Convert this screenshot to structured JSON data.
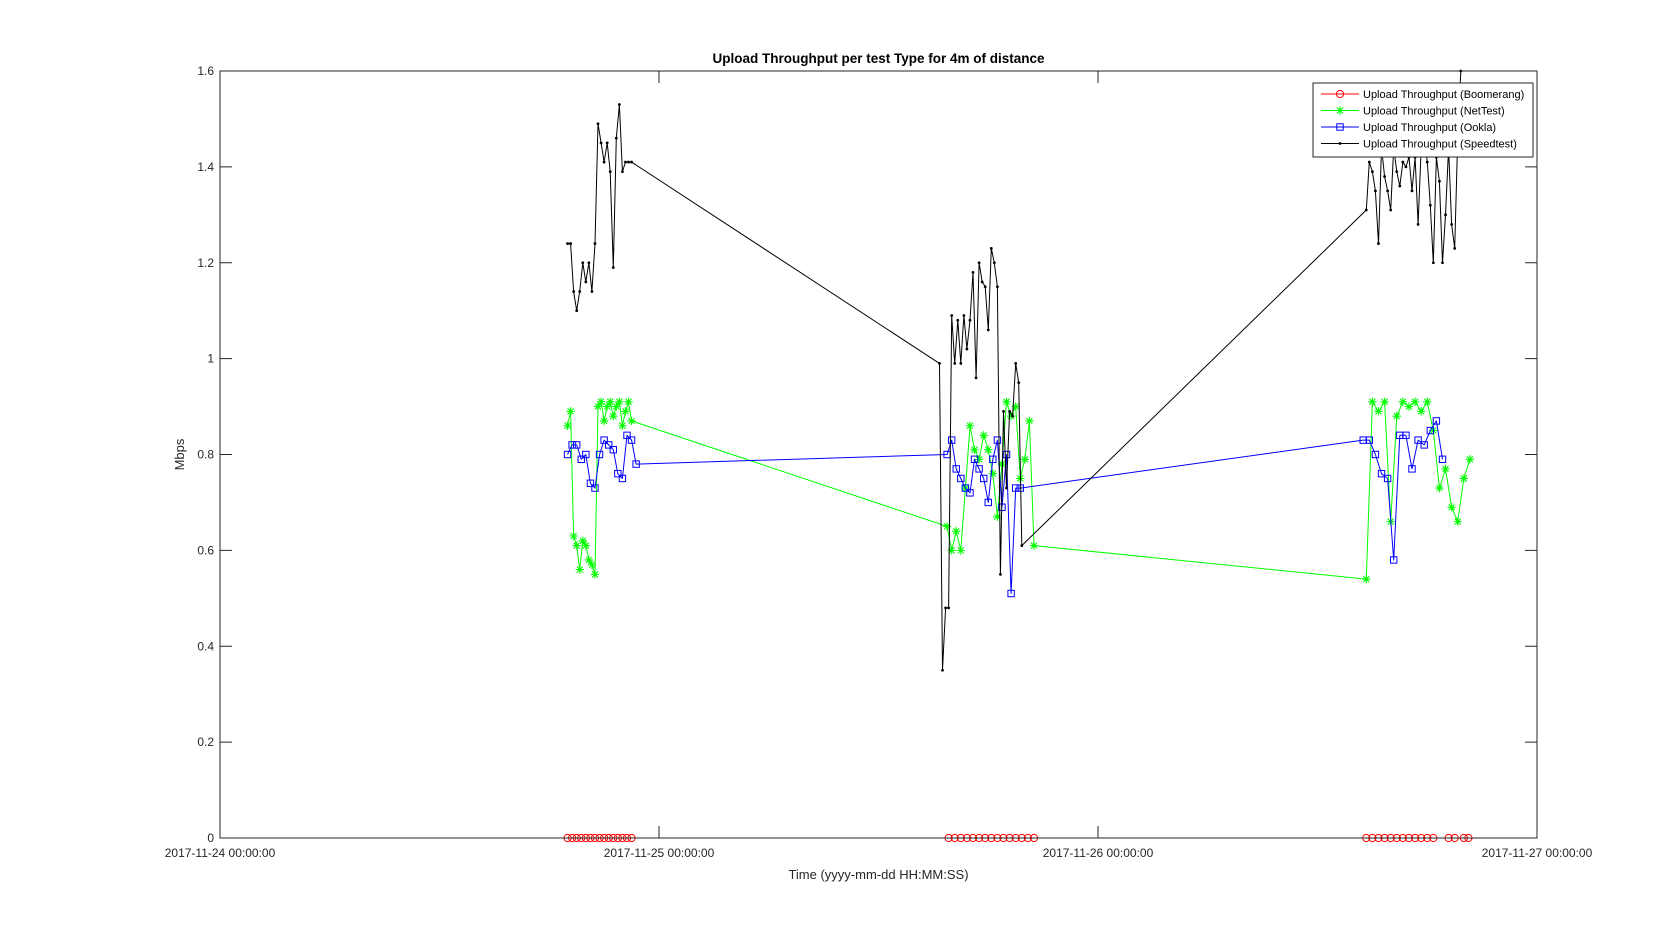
{
  "chart_data": {
    "type": "line",
    "title": "Upload Throughput per test Type for 4m of distance",
    "xlabel": "Time (yyyy-mm-dd HH:MM:SS)",
    "ylabel": "Mbps",
    "xlim": [
      "2017-11-24 00:00:00",
      "2017-11-27 00:00:00"
    ],
    "ylim": [
      0,
      1.6
    ],
    "x_ticks": [
      "2017-11-24 00:00:00",
      "2017-11-25 00:00:00",
      "2017-11-26 00:00:00",
      "2017-11-27 00:00:00"
    ],
    "y_ticks": [
      "0",
      "0.2",
      "0.4",
      "0.6",
      "0.8",
      "1",
      "1.2",
      "1.4",
      "1.6"
    ],
    "grid": false,
    "legend_position": "top-right",
    "series": [
      {
        "name": "Upload Throughput (Boomerang)",
        "color": "#ff0000",
        "marker": "circle",
        "x": [
          "2017-11-24 19:00:00",
          "2017-11-24 19:15:00",
          "2017-11-24 19:30:00",
          "2017-11-24 19:45:00",
          "2017-11-24 20:00:00",
          "2017-11-24 20:15:00",
          "2017-11-24 20:30:00",
          "2017-11-24 20:45:00",
          "2017-11-24 21:00:00",
          "2017-11-24 21:15:00",
          "2017-11-24 21:30:00",
          "2017-11-24 21:45:00",
          "2017-11-24 22:00:00",
          "2017-11-24 22:15:00",
          "2017-11-24 22:30:00",
          "2017-11-25 15:50:00",
          "2017-11-25 16:10:00",
          "2017-11-25 16:30:00",
          "2017-11-25 16:50:00",
          "2017-11-25 17:10:00",
          "2017-11-25 17:30:00",
          "2017-11-25 17:50:00",
          "2017-11-25 18:10:00",
          "2017-11-25 18:30:00",
          "2017-11-25 18:50:00",
          "2017-11-25 19:10:00",
          "2017-11-25 19:30:00",
          "2017-11-25 19:50:00",
          "2017-11-25 20:10:00",
          "2017-11-25 20:30:00",
          "2017-11-26 14:40:00",
          "2017-11-26 15:00:00",
          "2017-11-26 15:20:00",
          "2017-11-26 15:40:00",
          "2017-11-26 16:00:00",
          "2017-11-26 16:20:00",
          "2017-11-26 16:40:00",
          "2017-11-26 17:00:00",
          "2017-11-26 17:20:00",
          "2017-11-26 17:40:00",
          "2017-11-26 18:00:00",
          "2017-11-26 18:20:00",
          "2017-11-26 19:10:00",
          "2017-11-26 19:30:00",
          "2017-11-26 20:00:00",
          "2017-11-26 20:15:00"
        ],
        "y": [
          0,
          0,
          0,
          0,
          0,
          0,
          0,
          0,
          0,
          0,
          0,
          0,
          0,
          0,
          0,
          0,
          0,
          0,
          0,
          0,
          0,
          0,
          0,
          0,
          0,
          0,
          0,
          0,
          0,
          0,
          0,
          0,
          0,
          0,
          0,
          0,
          0,
          0,
          0,
          0,
          0,
          0,
          0,
          0,
          0,
          0
        ]
      },
      {
        "name": "Upload Throughput (NetTest)",
        "color": "#00ff00",
        "marker": "star",
        "x": [
          "2017-11-24 19:00:00",
          "2017-11-24 19:10:00",
          "2017-11-24 19:20:00",
          "2017-11-24 19:30:00",
          "2017-11-24 19:40:00",
          "2017-11-24 19:50:00",
          "2017-11-24 20:00:00",
          "2017-11-24 20:10:00",
          "2017-11-24 20:20:00",
          "2017-11-24 20:30:00",
          "2017-11-24 20:40:00",
          "2017-11-24 20:50:00",
          "2017-11-24 21:00:00",
          "2017-11-24 21:10:00",
          "2017-11-24 21:20:00",
          "2017-11-24 21:30:00",
          "2017-11-24 21:40:00",
          "2017-11-24 21:50:00",
          "2017-11-24 22:00:00",
          "2017-11-24 22:10:00",
          "2017-11-24 22:20:00",
          "2017-11-24 22:30:00",
          "2017-11-25 15:45:00",
          "2017-11-25 16:00:00",
          "2017-11-25 16:15:00",
          "2017-11-25 16:30:00",
          "2017-11-25 16:45:00",
          "2017-11-25 17:00:00",
          "2017-11-25 17:15:00",
          "2017-11-25 17:30:00",
          "2017-11-25 17:45:00",
          "2017-11-25 18:00:00",
          "2017-11-25 18:15:00",
          "2017-11-25 18:30:00",
          "2017-11-25 18:45:00",
          "2017-11-25 19:00:00",
          "2017-11-25 19:15:00",
          "2017-11-25 19:30:00",
          "2017-11-25 19:45:00",
          "2017-11-25 20:00:00",
          "2017-11-25 20:15:00",
          "2017-11-25 20:30:00",
          "2017-11-26 14:40:00",
          "2017-11-26 15:00:00",
          "2017-11-26 15:20:00",
          "2017-11-26 15:40:00",
          "2017-11-26 16:00:00",
          "2017-11-26 16:20:00",
          "2017-11-26 16:40:00",
          "2017-11-26 17:00:00",
          "2017-11-26 17:20:00",
          "2017-11-26 17:40:00",
          "2017-11-26 18:00:00",
          "2017-11-26 18:20:00",
          "2017-11-26 18:40:00",
          "2017-11-26 19:00:00",
          "2017-11-26 19:20:00",
          "2017-11-26 19:40:00",
          "2017-11-26 20:00:00",
          "2017-11-26 20:20:00"
        ],
        "y": [
          0.86,
          0.89,
          0.63,
          0.61,
          0.56,
          0.62,
          0.61,
          0.58,
          0.57,
          0.55,
          0.9,
          0.91,
          0.87,
          0.9,
          0.91,
          0.88,
          0.9,
          0.91,
          0.86,
          0.89,
          0.91,
          0.87,
          0.65,
          0.6,
          0.64,
          0.6,
          0.73,
          0.86,
          0.81,
          0.79,
          0.84,
          0.81,
          0.76,
          0.67,
          0.78,
          0.91,
          0.88,
          0.9,
          0.75,
          0.79,
          0.87,
          0.61,
          0.54,
          0.91,
          0.89,
          0.91,
          0.66,
          0.88,
          0.91,
          0.9,
          0.91,
          0.89,
          0.91,
          0.85,
          0.73,
          0.77,
          0.69,
          0.66,
          0.75,
          0.79
        ]
      },
      {
        "name": "Upload Throughput (Ookla)",
        "color": "#0000ff",
        "marker": "square",
        "x": [
          "2017-11-24 19:00:00",
          "2017-11-24 19:15:00",
          "2017-11-24 19:30:00",
          "2017-11-24 19:45:00",
          "2017-11-24 20:00:00",
          "2017-11-24 20:15:00",
          "2017-11-24 20:30:00",
          "2017-11-24 20:45:00",
          "2017-11-24 21:00:00",
          "2017-11-24 21:15:00",
          "2017-11-24 21:30:00",
          "2017-11-24 21:45:00",
          "2017-11-24 22:00:00",
          "2017-11-24 22:15:00",
          "2017-11-24 22:30:00",
          "2017-11-24 22:45:00",
          "2017-11-25 15:45:00",
          "2017-11-25 16:00:00",
          "2017-11-25 16:15:00",
          "2017-11-25 16:30:00",
          "2017-11-25 16:45:00",
          "2017-11-25 17:00:00",
          "2017-11-25 17:15:00",
          "2017-11-25 17:30:00",
          "2017-11-25 17:45:00",
          "2017-11-25 18:00:00",
          "2017-11-25 18:15:00",
          "2017-11-25 18:30:00",
          "2017-11-25 18:45:00",
          "2017-11-25 19:00:00",
          "2017-11-25 19:15:00",
          "2017-11-25 19:30:00",
          "2017-11-25 19:45:00",
          "2017-11-26 14:30:00",
          "2017-11-26 14:50:00",
          "2017-11-26 15:10:00",
          "2017-11-26 15:30:00",
          "2017-11-26 15:50:00",
          "2017-11-26 16:10:00",
          "2017-11-26 16:30:00",
          "2017-11-26 16:50:00",
          "2017-11-26 17:10:00",
          "2017-11-26 17:30:00",
          "2017-11-26 17:50:00",
          "2017-11-26 18:10:00",
          "2017-11-26 18:30:00",
          "2017-11-26 18:50:00"
        ],
        "y": [
          0.8,
          0.82,
          0.82,
          0.79,
          0.8,
          0.74,
          0.73,
          0.8,
          0.83,
          0.82,
          0.81,
          0.76,
          0.75,
          0.84,
          0.83,
          0.78,
          0.8,
          0.83,
          0.77,
          0.75,
          0.73,
          0.72,
          0.79,
          0.77,
          0.75,
          0.7,
          0.79,
          0.83,
          0.69,
          0.8,
          0.51,
          0.73,
          0.73,
          0.83,
          0.83,
          0.8,
          0.76,
          0.75,
          0.58,
          0.84,
          0.84,
          0.77,
          0.83,
          0.82,
          0.85,
          0.87,
          0.79
        ]
      },
      {
        "name": "Upload Throughput (Speedtest)",
        "color": "#000000",
        "marker": "dot",
        "x": [
          "2017-11-24 19:00:00",
          "2017-11-24 19:10:00",
          "2017-11-24 19:20:00",
          "2017-11-24 19:30:00",
          "2017-11-24 19:40:00",
          "2017-11-24 19:50:00",
          "2017-11-24 20:00:00",
          "2017-11-24 20:10:00",
          "2017-11-24 20:20:00",
          "2017-11-24 20:30:00",
          "2017-11-24 20:40:00",
          "2017-11-24 20:50:00",
          "2017-11-24 21:00:00",
          "2017-11-24 21:10:00",
          "2017-11-24 21:20:00",
          "2017-11-24 21:30:00",
          "2017-11-24 21:40:00",
          "2017-11-24 21:50:00",
          "2017-11-24 22:00:00",
          "2017-11-24 22:10:00",
          "2017-11-24 22:20:00",
          "2017-11-24 22:30:00",
          "2017-11-25 15:20:00",
          "2017-11-25 15:30:00",
          "2017-11-25 15:40:00",
          "2017-11-25 15:50:00",
          "2017-11-25 16:00:00",
          "2017-11-25 16:10:00",
          "2017-11-25 16:20:00",
          "2017-11-25 16:30:00",
          "2017-11-25 16:40:00",
          "2017-11-25 16:50:00",
          "2017-11-25 17:00:00",
          "2017-11-25 17:10:00",
          "2017-11-25 17:20:00",
          "2017-11-25 17:30:00",
          "2017-11-25 17:40:00",
          "2017-11-25 17:50:00",
          "2017-11-25 18:00:00",
          "2017-11-25 18:10:00",
          "2017-11-25 18:20:00",
          "2017-11-25 18:30:00",
          "2017-11-25 18:40:00",
          "2017-11-25 18:50:00",
          "2017-11-25 19:00:00",
          "2017-11-25 19:10:00",
          "2017-11-25 19:20:00",
          "2017-11-25 19:30:00",
          "2017-11-25 19:40:00",
          "2017-11-25 19:50:00",
          "2017-11-26 14:40:00",
          "2017-11-26 14:50:00",
          "2017-11-26 15:00:00",
          "2017-11-26 15:10:00",
          "2017-11-26 15:20:00",
          "2017-11-26 15:30:00",
          "2017-11-26 15:40:00",
          "2017-11-26 15:50:00",
          "2017-11-26 16:00:00",
          "2017-11-26 16:10:00",
          "2017-11-26 16:20:00",
          "2017-11-26 16:30:00",
          "2017-11-26 16:40:00",
          "2017-11-26 16:50:00",
          "2017-11-26 17:00:00",
          "2017-11-26 17:10:00",
          "2017-11-26 17:20:00",
          "2017-11-26 17:30:00",
          "2017-11-26 17:40:00",
          "2017-11-26 17:50:00",
          "2017-11-26 18:00:00",
          "2017-11-26 18:10:00",
          "2017-11-26 18:20:00",
          "2017-11-26 18:30:00",
          "2017-11-26 18:40:00",
          "2017-11-26 18:50:00",
          "2017-11-26 19:00:00",
          "2017-11-26 19:10:00",
          "2017-11-26 19:20:00",
          "2017-11-26 19:30:00",
          "2017-11-26 19:40:00",
          "2017-11-26 19:50:00"
        ],
        "y": [
          1.24,
          1.24,
          1.14,
          1.1,
          1.14,
          1.2,
          1.16,
          1.2,
          1.14,
          1.24,
          1.49,
          1.45,
          1.41,
          1.45,
          1.39,
          1.19,
          1.46,
          1.53,
          1.39,
          1.41,
          1.41,
          1.41,
          0.99,
          0.35,
          0.48,
          0.48,
          1.09,
          0.99,
          1.08,
          0.99,
          1.09,
          1.02,
          1.08,
          1.18,
          0.96,
          1.2,
          1.16,
          1.15,
          1.06,
          1.23,
          1.2,
          1.15,
          0.55,
          0.89,
          0.73,
          0.89,
          0.88,
          0.99,
          0.95,
          0.61,
          1.31,
          1.41,
          1.39,
          1.35,
          1.24,
          1.44,
          1.38,
          1.35,
          1.31,
          1.44,
          1.39,
          1.36,
          1.41,
          1.4,
          1.42,
          1.35,
          1.42,
          1.28,
          1.44,
          1.46,
          1.41,
          1.32,
          1.2,
          1.42,
          1.37,
          1.2,
          1.3,
          1.44,
          1.28,
          1.23,
          1.46,
          1.6
        ]
      }
    ]
  }
}
